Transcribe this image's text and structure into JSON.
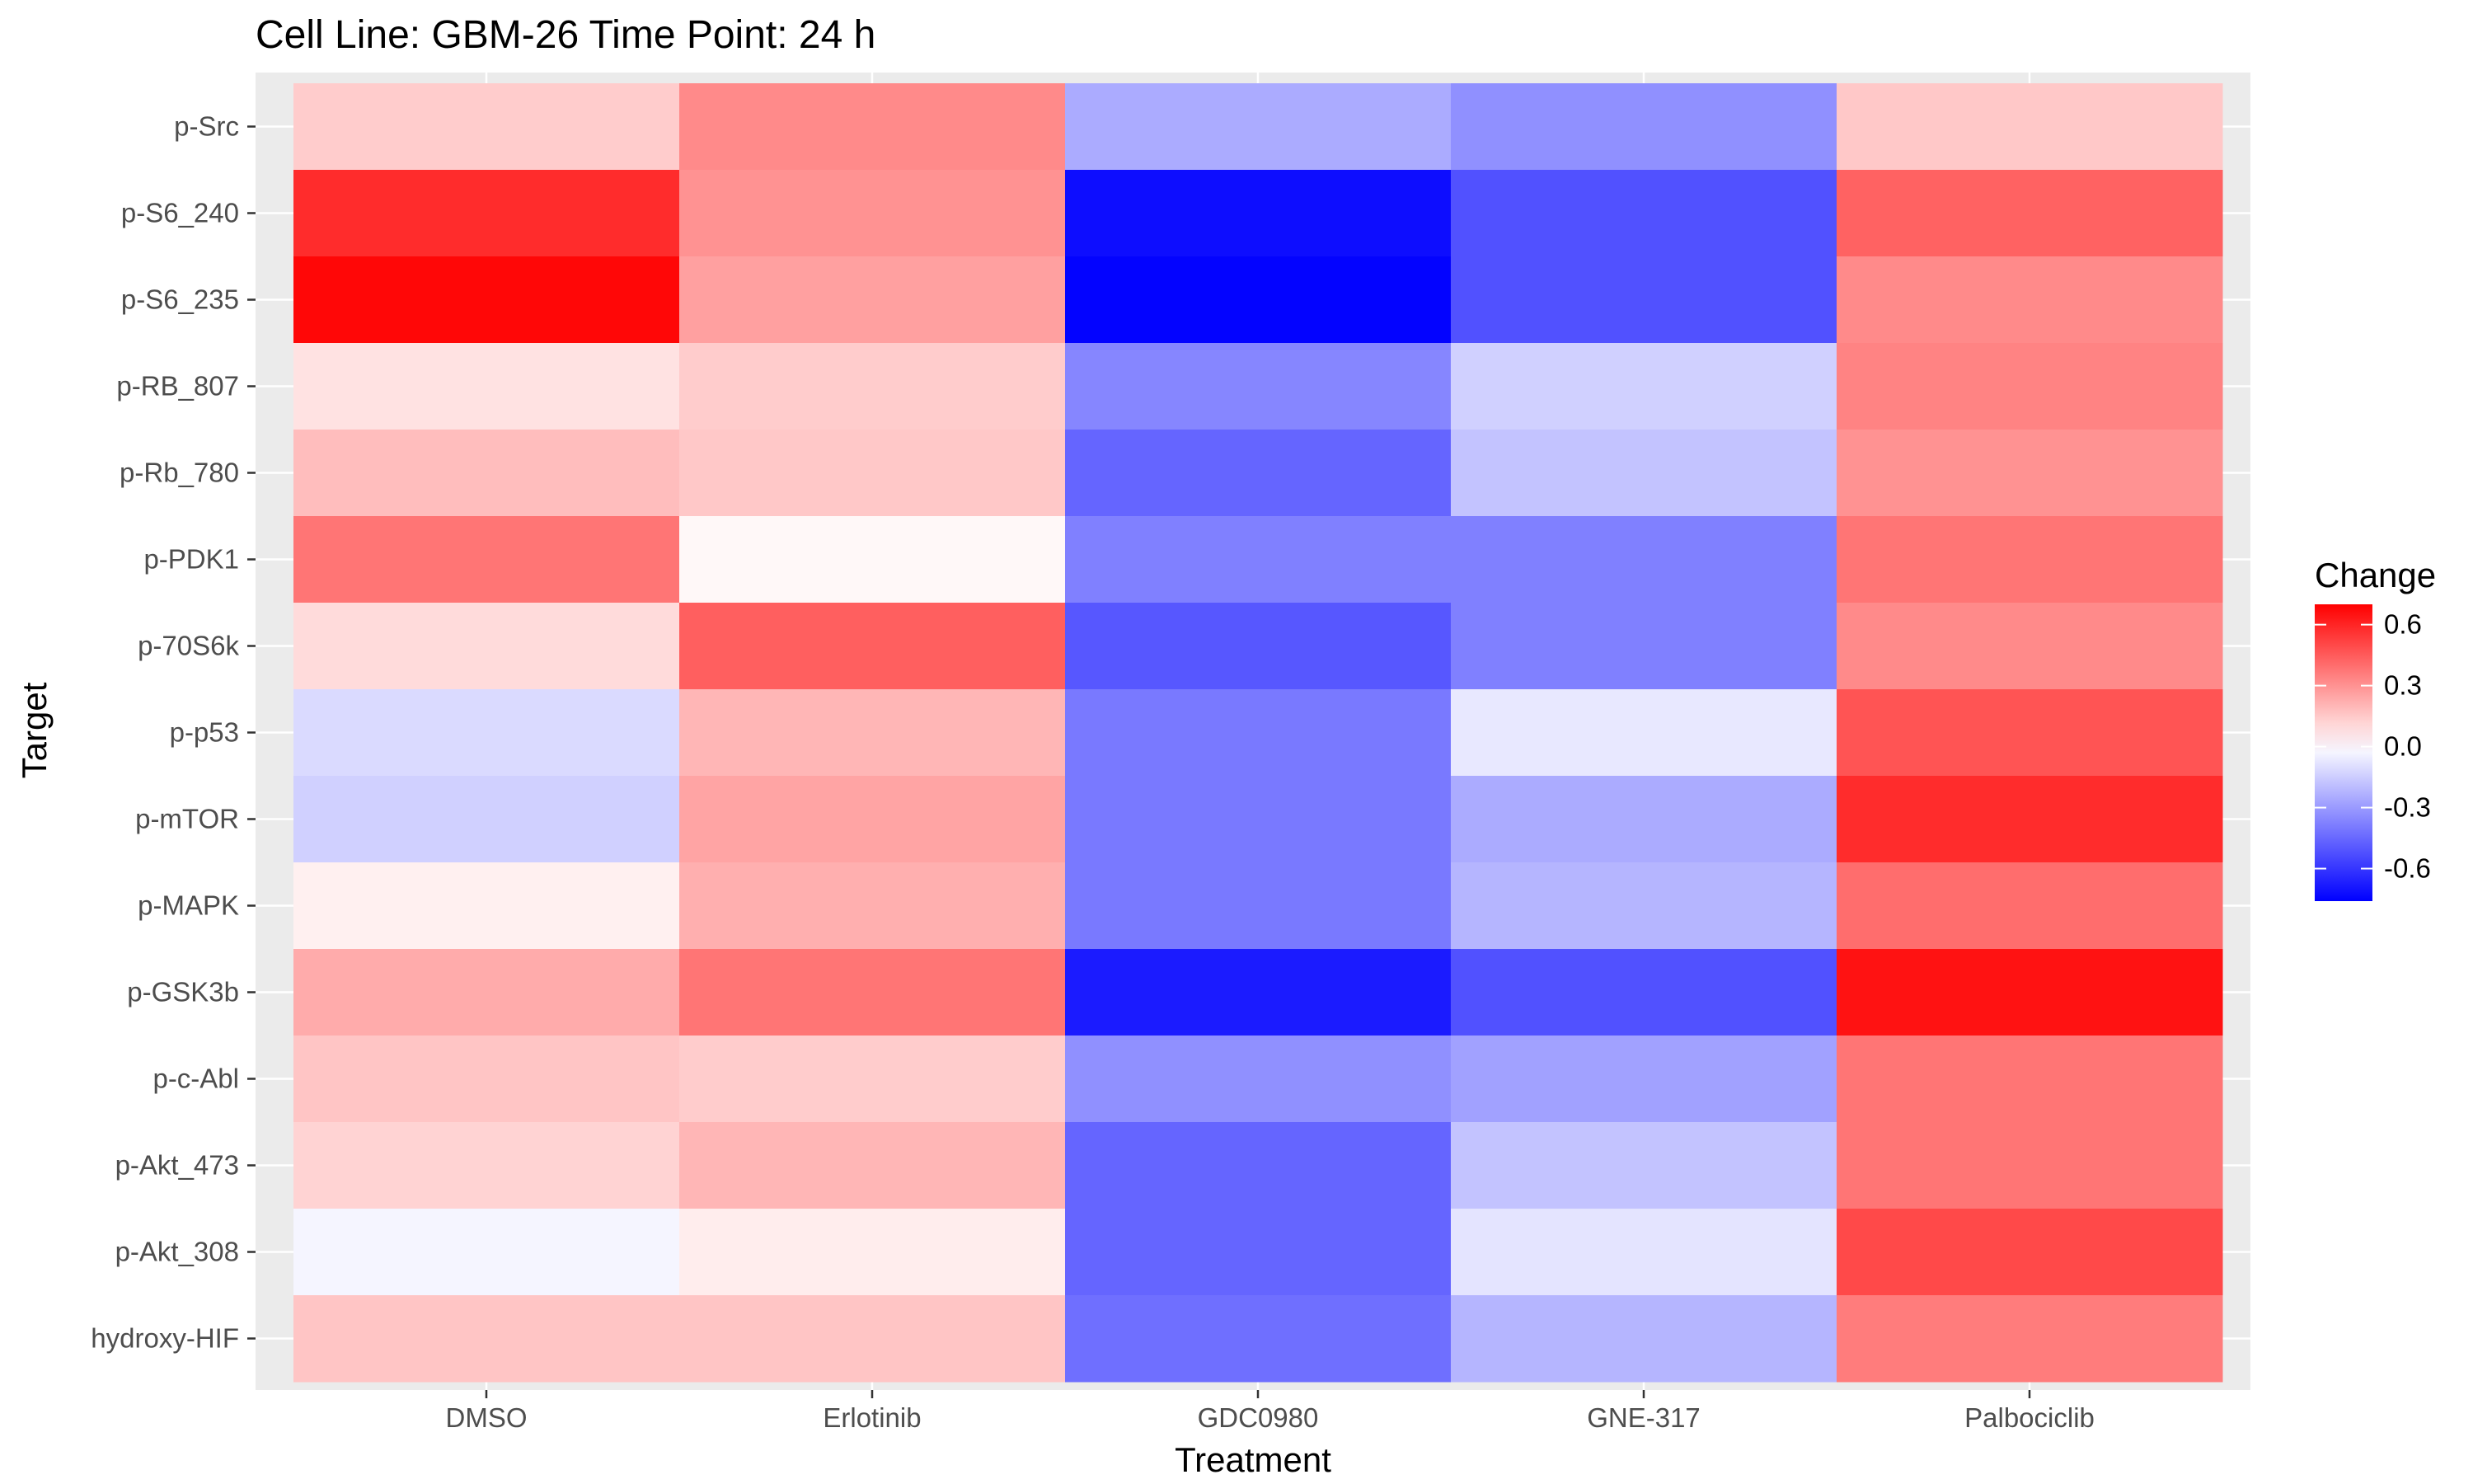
{
  "chart_data": {
    "type": "heatmap",
    "title": "Cell Line: GBM-26 Time Point: 24 h",
    "xlabel": "Treatment",
    "ylabel": "Target",
    "x_categories": [
      "DMSO",
      "Erlotinib",
      "GDC0980",
      "GNE-317",
      "Palbociclib"
    ],
    "y_categories": [
      "p-Src",
      "p-S6_240",
      "p-S6_235",
      "p-RB_807",
      "p-Rb_780",
      "p-PDK1",
      "p-70S6k",
      "p-p53",
      "p-mTOR",
      "p-MAPK",
      "p-GSK3b",
      "p-c-Abl",
      "p-Akt_473",
      "p-Akt_308",
      "hydroxy-HIF"
    ],
    "values": [
      [
        0.14,
        0.32,
        -0.25,
        -0.33,
        0.15
      ],
      [
        0.58,
        0.3,
        -0.72,
        -0.52,
        0.43
      ],
      [
        0.68,
        0.26,
        -0.75,
        -0.52,
        0.32
      ],
      [
        0.08,
        0.14,
        -0.36,
        -0.14,
        0.34
      ],
      [
        0.18,
        0.15,
        -0.46,
        -0.18,
        0.3
      ],
      [
        0.38,
        0.02,
        -0.38,
        -0.38,
        0.38
      ],
      [
        0.1,
        0.44,
        -0.5,
        -0.38,
        0.32
      ],
      [
        -0.11,
        0.2,
        -0.4,
        -0.07,
        0.47
      ],
      [
        -0.14,
        0.25,
        -0.4,
        -0.25,
        0.58
      ],
      [
        0.04,
        0.22,
        -0.4,
        -0.22,
        0.4
      ],
      [
        0.23,
        0.38,
        -0.68,
        -0.52,
        0.65
      ],
      [
        0.16,
        0.14,
        -0.33,
        -0.28,
        0.38
      ],
      [
        0.12,
        0.2,
        -0.46,
        -0.18,
        0.38
      ],
      [
        -0.03,
        0.05,
        -0.46,
        -0.08,
        0.5
      ],
      [
        0.16,
        0.16,
        -0.43,
        -0.22,
        0.36
      ]
    ],
    "legend": {
      "title": "Change",
      "ticks": [
        0.6,
        0.3,
        0.0,
        -0.3,
        -0.6
      ],
      "tick_labels": [
        "0.6",
        "0.3",
        "0.0",
        "-0.3",
        "-0.6"
      ],
      "range": [
        -0.76,
        0.7
      ],
      "low_color": "#0000ff",
      "mid_color": "#ffffff",
      "high_color": "#ff0000"
    },
    "panel_background": "#ebebeb",
    "grid_color": "#ffffff",
    "legend_position": "right",
    "grid": true
  }
}
